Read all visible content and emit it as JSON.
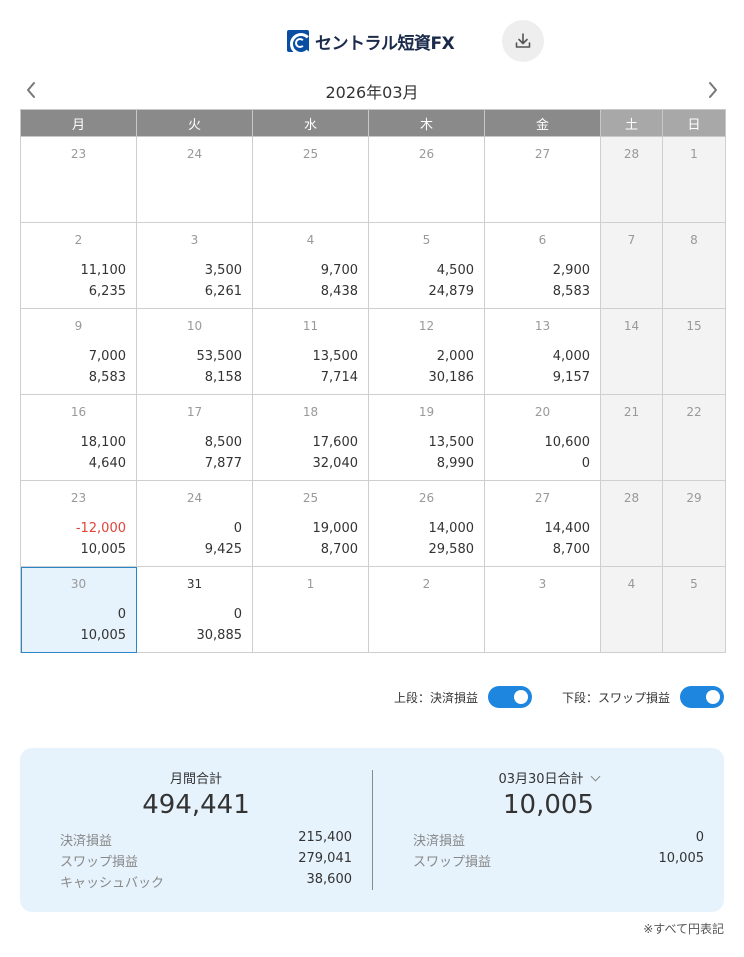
{
  "header": {
    "brand": "セントラル短資FX",
    "download_icon": "download-icon"
  },
  "nav": {
    "month": "2026年03月",
    "prev_icon": "chevron-left-icon",
    "next_icon": "chevron-right-icon"
  },
  "weekdays": [
    "月",
    "火",
    "水",
    "木",
    "金",
    "土",
    "日"
  ],
  "weeks": [
    [
      {
        "day": "23",
        "top": "",
        "bottom": ""
      },
      {
        "day": "24",
        "top": "",
        "bottom": ""
      },
      {
        "day": "25",
        "top": "",
        "bottom": ""
      },
      {
        "day": "26",
        "top": "",
        "bottom": ""
      },
      {
        "day": "27",
        "top": "",
        "bottom": ""
      },
      {
        "day": "28",
        "top": "",
        "bottom": ""
      },
      {
        "day": "1",
        "top": "",
        "bottom": ""
      }
    ],
    [
      {
        "day": "2",
        "top": "11,100",
        "bottom": "6,235"
      },
      {
        "day": "3",
        "top": "3,500",
        "bottom": "6,261"
      },
      {
        "day": "4",
        "top": "9,700",
        "bottom": "8,438"
      },
      {
        "day": "5",
        "top": "4,500",
        "bottom": "24,879"
      },
      {
        "day": "6",
        "top": "2,900",
        "bottom": "8,583"
      },
      {
        "day": "7",
        "top": "",
        "bottom": ""
      },
      {
        "day": "8",
        "top": "",
        "bottom": ""
      }
    ],
    [
      {
        "day": "9",
        "top": "7,000",
        "bottom": "8,583"
      },
      {
        "day": "10",
        "top": "53,500",
        "bottom": "8,158"
      },
      {
        "day": "11",
        "top": "13,500",
        "bottom": "7,714"
      },
      {
        "day": "12",
        "top": "2,000",
        "bottom": "30,186"
      },
      {
        "day": "13",
        "top": "4,000",
        "bottom": "9,157"
      },
      {
        "day": "14",
        "top": "",
        "bottom": ""
      },
      {
        "day": "15",
        "top": "",
        "bottom": ""
      }
    ],
    [
      {
        "day": "16",
        "top": "18,100",
        "bottom": "4,640"
      },
      {
        "day": "17",
        "top": "8,500",
        "bottom": "7,877"
      },
      {
        "day": "18",
        "top": "17,600",
        "bottom": "32,040"
      },
      {
        "day": "19",
        "top": "13,500",
        "bottom": "8,990"
      },
      {
        "day": "20",
        "top": "10,600",
        "bottom": "0"
      },
      {
        "day": "21",
        "top": "",
        "bottom": ""
      },
      {
        "day": "22",
        "top": "",
        "bottom": ""
      }
    ],
    [
      {
        "day": "23",
        "top": "-12,000",
        "bottom": "10,005"
      },
      {
        "day": "24",
        "top": "0",
        "bottom": "9,425"
      },
      {
        "day": "25",
        "top": "19,000",
        "bottom": "8,700"
      },
      {
        "day": "26",
        "top": "14,000",
        "bottom": "29,580"
      },
      {
        "day": "27",
        "top": "14,400",
        "bottom": "8,700"
      },
      {
        "day": "28",
        "top": "",
        "bottom": ""
      },
      {
        "day": "29",
        "top": "",
        "bottom": ""
      }
    ],
    [
      {
        "day": "30",
        "top": "0",
        "bottom": "10,005"
      },
      {
        "day": "31",
        "top": "0",
        "bottom": "30,885"
      },
      {
        "day": "1",
        "top": "",
        "bottom": ""
      },
      {
        "day": "2",
        "top": "",
        "bottom": ""
      },
      {
        "day": "3",
        "top": "",
        "bottom": ""
      },
      {
        "day": "4",
        "top": "",
        "bottom": ""
      },
      {
        "day": "5",
        "top": "",
        "bottom": ""
      }
    ]
  ],
  "selected": {
    "week": 5,
    "col": 0
  },
  "today": {
    "week": 5,
    "col": 1
  },
  "toggles": {
    "upper_label": "上段：決済損益",
    "upper_on": true,
    "lower_label": "下段：スワップ損益",
    "lower_on": true
  },
  "summary": {
    "monthly": {
      "title": "月間合計",
      "total": "494,441",
      "rows": [
        {
          "label": "決済損益",
          "value": "215,400"
        },
        {
          "label": "スワップ損益",
          "value": "279,041"
        },
        {
          "label": "キャッシュバック",
          "value": "38,600"
        }
      ]
    },
    "daily": {
      "title": "03月30日合計",
      "total": "10,005",
      "dropdown_icon": "chevron-down-icon",
      "rows": [
        {
          "label": "決済損益",
          "value": "0"
        },
        {
          "label": "スワップ損益",
          "value": "10,005"
        }
      ]
    }
  },
  "footnote": "※すべて円表記",
  "colors": {
    "accent": "#1e86de",
    "negative": "#e0443a",
    "header_bg": "#8a8a8a",
    "weekend_header_bg": "#a8a8a8",
    "selected_bg": "#e6f3fc",
    "summary_bg": "#e6f3fc"
  }
}
